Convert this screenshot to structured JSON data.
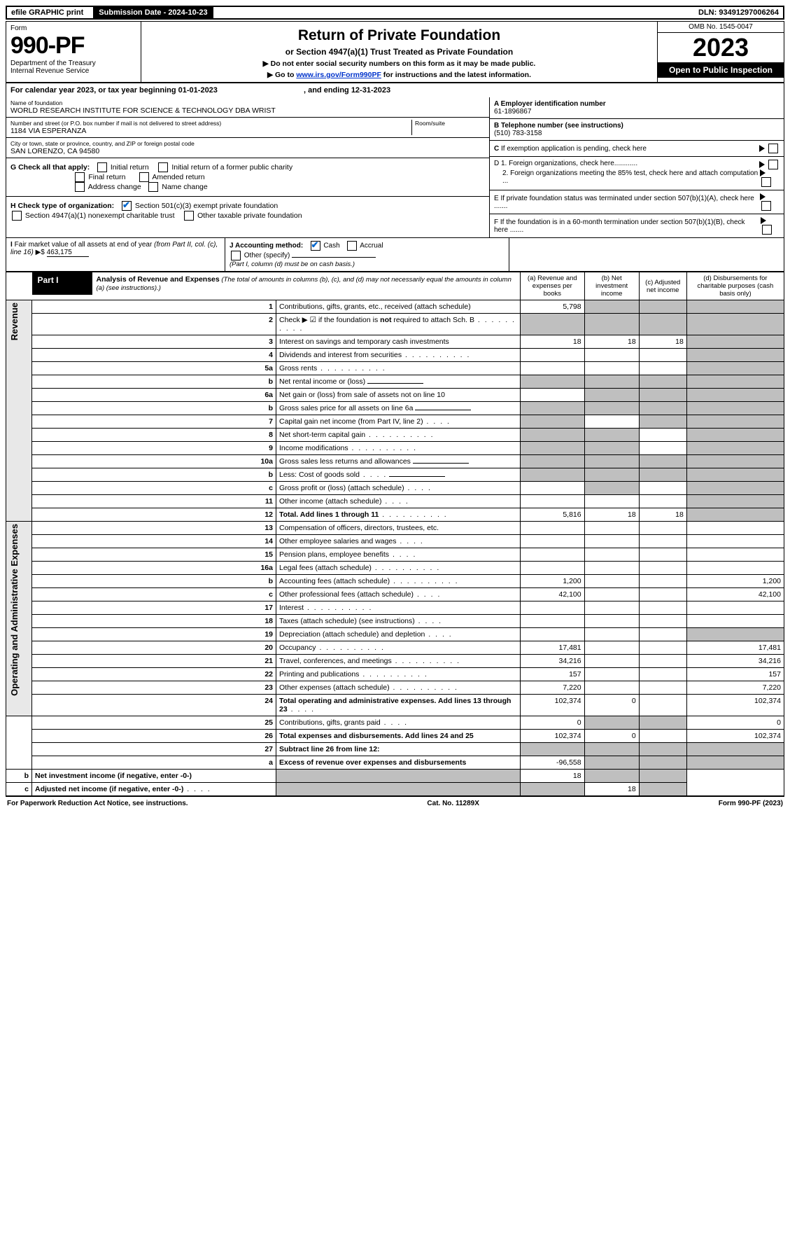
{
  "top": {
    "efile": "efile GRAPHIC print",
    "submission": "Submission Date - 2024-10-23",
    "dln": "DLN: 93491297006264"
  },
  "header": {
    "form_label": "Form",
    "form_num": "990-PF",
    "dept": "Department of the Treasury",
    "irs": "Internal Revenue Service",
    "title": "Return of Private Foundation",
    "subtitle": "or Section 4947(a)(1) Trust Treated as Private Foundation",
    "note1": "▶ Do not enter social security numbers on this form as it may be made public.",
    "note2_pre": "▶ Go to ",
    "note2_link": "www.irs.gov/Form990PF",
    "note2_post": " for instructions and the latest information.",
    "omb": "OMB No. 1545-0047",
    "year": "2023",
    "open": "Open to Public Inspection"
  },
  "calyear": "For calendar year 2023, or tax year beginning 01-01-2023",
  "calyear_end": ", and ending 12-31-2023",
  "entity": {
    "name_label": "Name of foundation",
    "name": "WORLD RESEARCH INSTITUTE FOR SCIENCE & TECHNOLOGY DBA WRIST",
    "addr_label": "Number and street (or P.O. box number if mail is not delivered to street address)",
    "addr": "1184 VIA ESPERANZA",
    "room_label": "Room/suite",
    "city_label": "City or town, state or province, country, and ZIP or foreign postal code",
    "city": "SAN LORENZO, CA  94580"
  },
  "side": {
    "a_label": "A Employer identification number",
    "a_val": "61-1896867",
    "b_label": "B Telephone number (see instructions)",
    "b_val": "(510) 783-3158",
    "c_label": "C If exemption application is pending, check here",
    "d1": "D 1. Foreign organizations, check here............",
    "d2": "2. Foreign organizations meeting the 85% test, check here and attach computation ...",
    "e": "E  If private foundation status was terminated under section 507(b)(1)(A), check here .......",
    "f": "F  If the foundation is in a 60-month termination under section 507(b)(1)(B), check here .......",
    "g_label": "G Check all that apply:",
    "g_opts": [
      "Initial return",
      "Initial return of a former public charity",
      "Final return",
      "Amended return",
      "Address change",
      "Name change"
    ],
    "h_label": "H Check type of organization:",
    "h1": "Section 501(c)(3) exempt private foundation",
    "h2": "Section 4947(a)(1) nonexempt charitable trust",
    "h3": "Other taxable private foundation",
    "i_label": "I Fair market value of all assets at end of year (from Part II, col. (c), line 16)",
    "i_val": "463,175",
    "j_label": "J Accounting method:",
    "j_cash": "Cash",
    "j_accrual": "Accrual",
    "j_other": "Other (specify)",
    "j_note": "(Part I, column (d) must be on cash basis.)"
  },
  "part1": {
    "label": "Part I",
    "title": "Analysis of Revenue and Expenses",
    "title_note": " (The total of amounts in columns (b), (c), and (d) may not necessarily equal the amounts in column (a) (see instructions).)",
    "cols": {
      "a": "(a)   Revenue and expenses per books",
      "b": "(b)   Net investment income",
      "c": "(c)   Adjusted net income",
      "d": "(d)   Disbursements for charitable purposes (cash basis only)"
    }
  },
  "sidebars": {
    "rev": "Revenue",
    "exp": "Operating and Administrative Expenses"
  },
  "rows": [
    {
      "n": "1",
      "d": "Contributions, gifts, grants, etc., received (attach schedule)",
      "a": "5,798",
      "bS": true,
      "cS": true,
      "dS": true
    },
    {
      "n": "2",
      "d": "Check ▶ ☑ if the foundation is not required to attach Sch. B",
      "dots": true,
      "aS": true,
      "bS": true,
      "cS": true,
      "dS": true,
      "bold_not": true
    },
    {
      "n": "3",
      "d": "Interest on savings and temporary cash investments",
      "a": "18",
      "b": "18",
      "c": "18",
      "dS": true
    },
    {
      "n": "4",
      "d": "Dividends and interest from securities",
      "dots": true,
      "dS": true
    },
    {
      "n": "5a",
      "d": "Gross rents",
      "dots": true,
      "dS": true
    },
    {
      "n": "b",
      "d": "Net rental income or (loss)",
      "inline": true,
      "aS": true,
      "bS": true,
      "cS": true,
      "dS": true
    },
    {
      "n": "6a",
      "d": "Net gain or (loss) from sale of assets not on line 10",
      "bS": true,
      "cS": true,
      "dS": true
    },
    {
      "n": "b",
      "d": "Gross sales price for all assets on line 6a",
      "inline": true,
      "aS": true,
      "bS": true,
      "cS": true,
      "dS": true
    },
    {
      "n": "7",
      "d": "Capital gain net income (from Part IV, line 2)",
      "dots_s": true,
      "aS": true,
      "cS": true,
      "dS": true
    },
    {
      "n": "8",
      "d": "Net short-term capital gain",
      "dots": true,
      "aS": true,
      "bS": true,
      "dS": true
    },
    {
      "n": "9",
      "d": "Income modifications",
      "dots": true,
      "aS": true,
      "bS": true,
      "dS": true
    },
    {
      "n": "10a",
      "d": "Gross sales less returns and allowances",
      "inline": true,
      "aS": true,
      "bS": true,
      "cS": true,
      "dS": true
    },
    {
      "n": "b",
      "d": "Less: Cost of goods sold",
      "dots_s": true,
      "inline": true,
      "aS": true,
      "bS": true,
      "cS": true,
      "dS": true
    },
    {
      "n": "c",
      "d": "Gross profit or (loss) (attach schedule)",
      "dots_s": true,
      "bS": true,
      "dS": true
    },
    {
      "n": "11",
      "d": "Other income (attach schedule)",
      "dots_s": true,
      "dS": true
    },
    {
      "n": "12",
      "d": "Total. Add lines 1 through 11",
      "dots": true,
      "bold": true,
      "a": "5,816",
      "b": "18",
      "c": "18",
      "dS": true
    },
    {
      "n": "13",
      "d": "Compensation of officers, directors, trustees, etc.",
      "sec": "exp"
    },
    {
      "n": "14",
      "d": "Other employee salaries and wages",
      "dots_s": true
    },
    {
      "n": "15",
      "d": "Pension plans, employee benefits",
      "dots_s": true
    },
    {
      "n": "16a",
      "d": "Legal fees (attach schedule)",
      "dots": true
    },
    {
      "n": "b",
      "d": "Accounting fees (attach schedule)",
      "dots": true,
      "a": "1,200",
      "d_": "1,200"
    },
    {
      "n": "c",
      "d": "Other professional fees (attach schedule)",
      "dots_s": true,
      "a": "42,100",
      "d_": "42,100"
    },
    {
      "n": "17",
      "d": "Interest",
      "dots": true
    },
    {
      "n": "18",
      "d": "Taxes (attach schedule) (see instructions)",
      "dots_s": true
    },
    {
      "n": "19",
      "d": "Depreciation (attach schedule) and depletion",
      "dots_s": true,
      "dS": true
    },
    {
      "n": "20",
      "d": "Occupancy",
      "dots": true,
      "a": "17,481",
      "d_": "17,481"
    },
    {
      "n": "21",
      "d": "Travel, conferences, and meetings",
      "dots": true,
      "a": "34,216",
      "d_": "34,216"
    },
    {
      "n": "22",
      "d": "Printing and publications",
      "dots": true,
      "a": "157",
      "d_": "157"
    },
    {
      "n": "23",
      "d": "Other expenses (attach schedule)",
      "dots": true,
      "a": "7,220",
      "d_": "7,220"
    },
    {
      "n": "24",
      "d": "Total operating and administrative expenses. Add lines 13 through 23",
      "dots_s": true,
      "bold": true,
      "a": "102,374",
      "b": "0",
      "d_": "102,374"
    },
    {
      "n": "25",
      "d": "Contributions, gifts, grants paid",
      "dots_s": true,
      "a": "0",
      "bS": true,
      "cS": true,
      "d_": "0"
    },
    {
      "n": "26",
      "d": "Total expenses and disbursements. Add lines 24 and 25",
      "bold": true,
      "a": "102,374",
      "b": "0",
      "d_": "102,374"
    },
    {
      "n": "27",
      "d": "Subtract line 26 from line 12:",
      "bold": true,
      "aS": true,
      "bS": true,
      "cS": true,
      "dS": true,
      "noside": true
    },
    {
      "n": "a",
      "d": "Excess of revenue over expenses and disbursements",
      "bold": true,
      "a": "-96,558",
      "bS": true,
      "cS": true,
      "dS": true
    },
    {
      "n": "b",
      "d": "Net investment income (if negative, enter -0-)",
      "bold": true,
      "aS": true,
      "b": "18",
      "cS": true,
      "dS": true
    },
    {
      "n": "c",
      "d": "Adjusted net income (if negative, enter -0-)",
      "dots_s": true,
      "bold": true,
      "aS": true,
      "bS": true,
      "c": "18",
      "dS": true
    }
  ],
  "footer": {
    "left": "For Paperwork Reduction Act Notice, see instructions.",
    "mid": "Cat. No. 11289X",
    "right": "Form 990-PF (2023)"
  },
  "colors": {
    "link": "#0033cc",
    "check": "#0066cc",
    "shade": "#bfbfbf",
    "side_bg": "#e8e8e8"
  }
}
